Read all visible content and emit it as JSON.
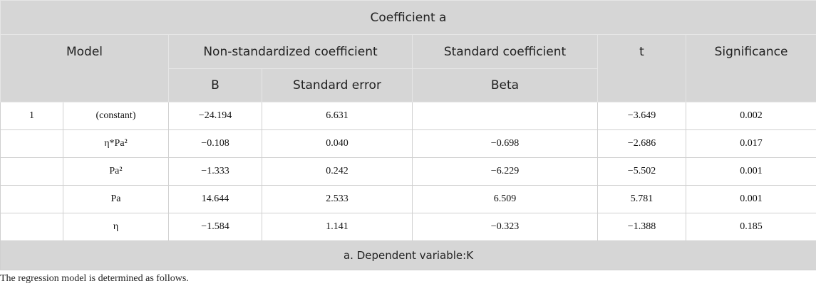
{
  "table": {
    "title": "Coefficient a",
    "header": {
      "model": "Model",
      "non_standardized": "Non-standardized coefficient",
      "standard": "Standard coefficient",
      "t": "t",
      "significance": "Significance",
      "b": "B",
      "standard_error": "Standard error",
      "beta": "Beta"
    },
    "rows": [
      {
        "model": "1",
        "variable": "(constant)",
        "b": "−24.194",
        "standard_error": "6.631",
        "t": "−3.649",
        "significance": "0.002"
      },
      {
        "variable": "η*Pa²",
        "b": "−0.108",
        "standard_error": "0.040",
        "beta": "−0.698",
        "t": "−2.686",
        "significance": "0.017"
      },
      {
        "variable": "Pa²",
        "b": "−1.333",
        "standard_error": "0.242",
        "beta": "−6.229",
        "t": "−5.502",
        "significance": "0.001"
      },
      {
        "variable": "Pa",
        "b": "14.644",
        "standard_error": "2.533",
        "beta": "6.509",
        "t": "5.781",
        "significance": "0.001"
      },
      {
        "variable": "η",
        "b": "−1.584",
        "standard_error": "1.141",
        "beta": "−0.323",
        "t": "−1.388",
        "significance": "0.185"
      }
    ],
    "footnote": "a. Dependent variable:K"
  },
  "note": "The regression model is determined as follows."
}
